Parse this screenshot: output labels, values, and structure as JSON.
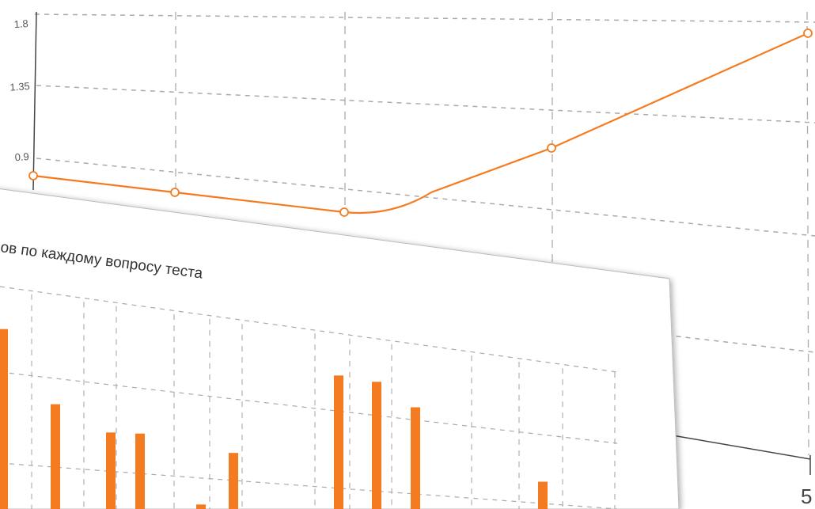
{
  "colors": {
    "series": "#f47b20",
    "grid": "#aaaaaa",
    "axis": "#444444",
    "card": "#ffffff",
    "card_border": "#bbbbbb"
  },
  "chart_data": [
    {
      "type": "line",
      "title": "",
      "y_ticks": [
        "1.8",
        "1.35",
        "0.9"
      ],
      "x_tick_labels": [
        "5"
      ],
      "ylim": [
        0.45,
        1.8
      ],
      "grid": true,
      "series": [
        {
          "values": [
            0.76,
            0.66,
            0.52,
            0.93,
            1.74
          ]
        }
      ]
    },
    {
      "type": "bar",
      "title": "ов по каждому вопросу теста",
      "grid": true,
      "values": [
        0.95,
        0.6,
        0.5,
        0.52,
        0.2,
        0.5,
        0.0,
        1.0,
        1.0,
        0.9,
        0.15,
        0.62,
        0.42
      ]
    }
  ]
}
